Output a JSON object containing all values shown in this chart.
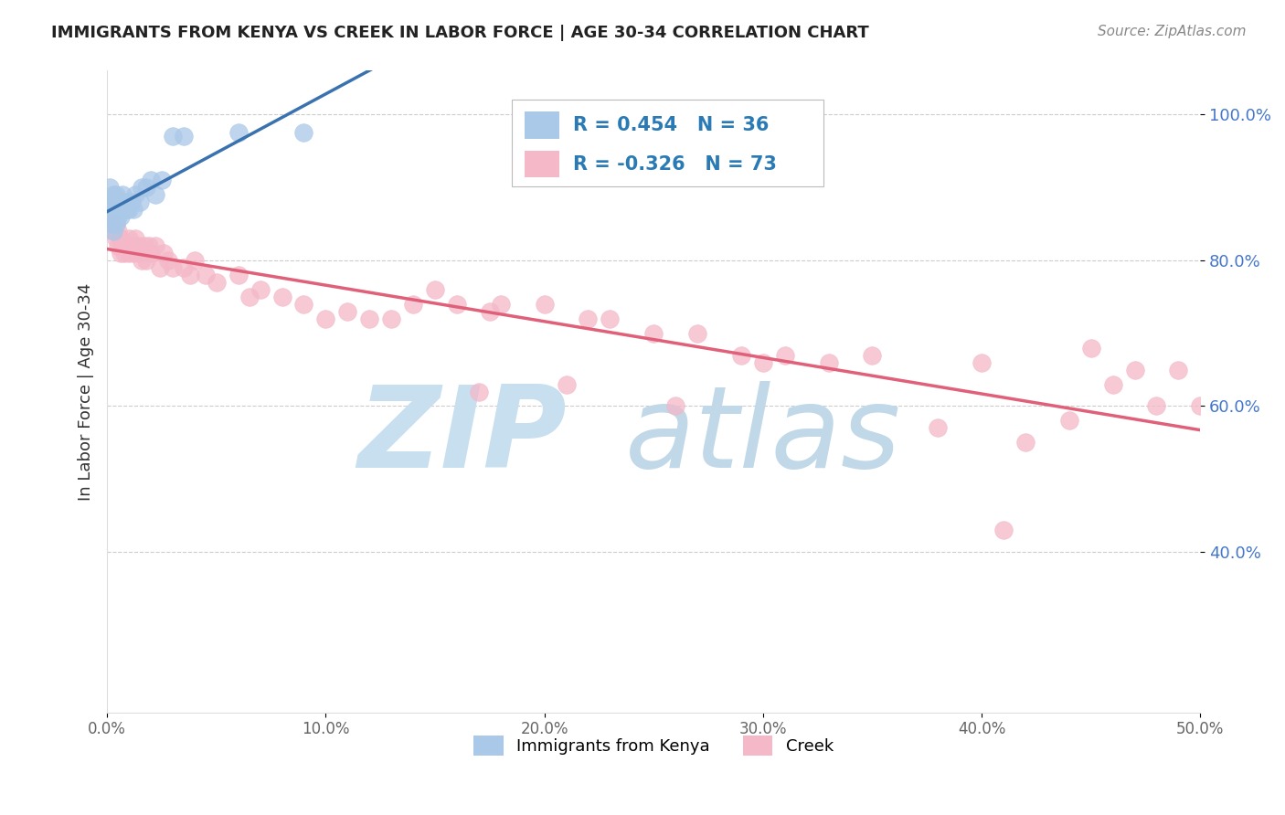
{
  "title": "IMMIGRANTS FROM KENYA VS CREEK IN LABOR FORCE | AGE 30-34 CORRELATION CHART",
  "source": "Source: ZipAtlas.com",
  "ylabel": "In Labor Force | Age 30-34",
  "xlim": [
    0.0,
    0.5
  ],
  "ylim": [
    0.18,
    1.06
  ],
  "xticks": [
    0.0,
    0.1,
    0.2,
    0.3,
    0.4,
    0.5
  ],
  "yticks": [
    0.4,
    0.6,
    0.8,
    1.0
  ],
  "xticklabels": [
    "0.0%",
    "10.0%",
    "20.0%",
    "30.0%",
    "40.0%",
    "50.0%"
  ],
  "yticklabels": [
    "40.0%",
    "60.0%",
    "80.0%",
    "100.0%"
  ],
  "kenya_R": 0.454,
  "kenya_N": 36,
  "creek_R": -0.326,
  "creek_N": 73,
  "kenya_color": "#aac8e8",
  "creek_color": "#f4b8c8",
  "kenya_line_color": "#3a72b0",
  "creek_line_color": "#e0607a",
  "kenya_x": [
    0.001,
    0.001,
    0.001,
    0.002,
    0.002,
    0.002,
    0.003,
    0.003,
    0.003,
    0.003,
    0.004,
    0.004,
    0.004,
    0.005,
    0.005,
    0.005,
    0.006,
    0.006,
    0.007,
    0.007,
    0.008,
    0.009,
    0.01,
    0.011,
    0.012,
    0.013,
    0.015,
    0.016,
    0.018,
    0.02,
    0.022,
    0.025,
    0.03,
    0.035,
    0.06,
    0.09
  ],
  "kenya_y": [
    0.86,
    0.88,
    0.9,
    0.85,
    0.87,
    0.88,
    0.84,
    0.86,
    0.87,
    0.89,
    0.85,
    0.87,
    0.89,
    0.86,
    0.87,
    0.88,
    0.86,
    0.88,
    0.87,
    0.89,
    0.88,
    0.87,
    0.87,
    0.88,
    0.87,
    0.89,
    0.88,
    0.9,
    0.9,
    0.91,
    0.89,
    0.91,
    0.97,
    0.97,
    0.975,
    0.975
  ],
  "creek_x": [
    0.001,
    0.002,
    0.002,
    0.003,
    0.004,
    0.004,
    0.005,
    0.005,
    0.006,
    0.006,
    0.007,
    0.008,
    0.009,
    0.01,
    0.01,
    0.011,
    0.012,
    0.013,
    0.014,
    0.015,
    0.016,
    0.017,
    0.018,
    0.019,
    0.02,
    0.022,
    0.024,
    0.026,
    0.028,
    0.03,
    0.035,
    0.038,
    0.04,
    0.045,
    0.05,
    0.06,
    0.065,
    0.07,
    0.08,
    0.09,
    0.1,
    0.11,
    0.12,
    0.13,
    0.14,
    0.15,
    0.16,
    0.17,
    0.175,
    0.18,
    0.2,
    0.21,
    0.22,
    0.23,
    0.25,
    0.26,
    0.27,
    0.29,
    0.3,
    0.31,
    0.33,
    0.35,
    0.38,
    0.4,
    0.42,
    0.44,
    0.45,
    0.46,
    0.47,
    0.48,
    0.49,
    0.5,
    0.41
  ],
  "creek_y": [
    0.88,
    0.85,
    0.87,
    0.84,
    0.83,
    0.85,
    0.82,
    0.84,
    0.81,
    0.83,
    0.82,
    0.81,
    0.82,
    0.81,
    0.83,
    0.82,
    0.81,
    0.83,
    0.82,
    0.81,
    0.8,
    0.82,
    0.8,
    0.82,
    0.81,
    0.82,
    0.79,
    0.81,
    0.8,
    0.79,
    0.79,
    0.78,
    0.8,
    0.78,
    0.77,
    0.78,
    0.75,
    0.76,
    0.75,
    0.74,
    0.72,
    0.73,
    0.72,
    0.72,
    0.74,
    0.76,
    0.74,
    0.62,
    0.73,
    0.74,
    0.74,
    0.63,
    0.72,
    0.72,
    0.7,
    0.6,
    0.7,
    0.67,
    0.66,
    0.67,
    0.66,
    0.67,
    0.57,
    0.66,
    0.55,
    0.58,
    0.68,
    0.63,
    0.65,
    0.6,
    0.65,
    0.6,
    0.43
  ],
  "background_color": "#ffffff",
  "grid_color": "#cccccc",
  "watermark_zip": "ZIP",
  "watermark_atlas": "atlas",
  "watermark_color_zip": "#c8dff0",
  "watermark_color_atlas": "#c0d8e8",
  "legend_color": "#2a7ab5",
  "tick_color_y": "#4477cc",
  "tick_color_x": "#666666"
}
